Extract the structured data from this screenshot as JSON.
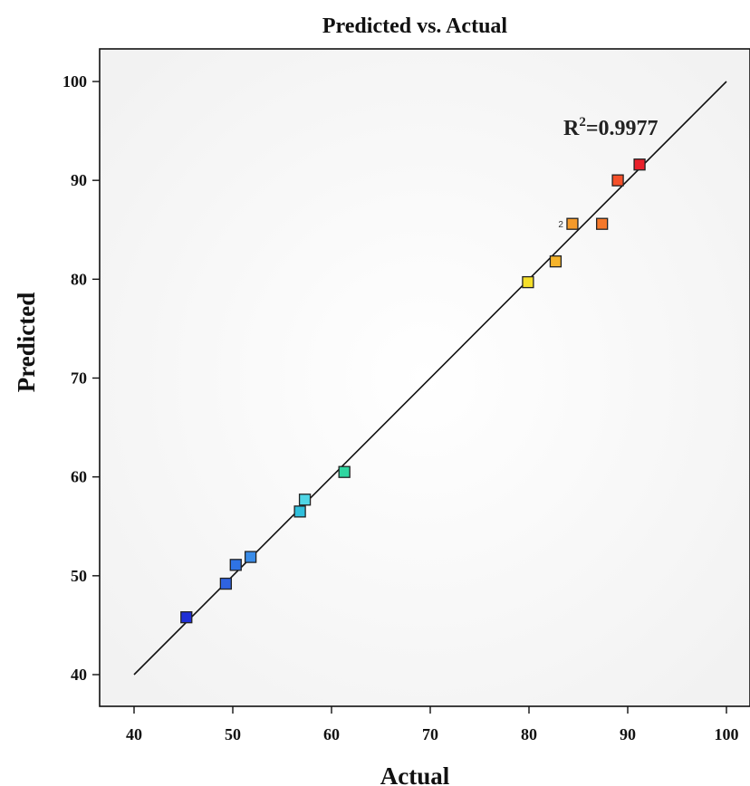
{
  "chart_data": {
    "type": "scatter",
    "title": "Predicted vs. Actual",
    "xlabel": "Actual",
    "ylabel": "Predicted",
    "xlim": [
      40,
      100
    ],
    "ylim": [
      40,
      100
    ],
    "xticks": [
      "40",
      "50",
      "60",
      "70",
      "80",
      "90",
      "100"
    ],
    "yticks": [
      "40",
      "50",
      "60",
      "70",
      "80",
      "90",
      "100"
    ],
    "annotation": {
      "prefix": "R",
      "sup": "2",
      "value": "=0.9977"
    },
    "reference_line": {
      "x": [
        40,
        100
      ],
      "y": [
        40,
        100
      ]
    },
    "grid": false,
    "legend": "none",
    "points": [
      {
        "x": 45.3,
        "y": 45.8,
        "color": "#1f2fd6"
      },
      {
        "x": 49.3,
        "y": 49.2,
        "color": "#2f63e0"
      },
      {
        "x": 50.3,
        "y": 51.1,
        "color": "#2f73e4"
      },
      {
        "x": 51.8,
        "y": 51.9,
        "color": "#3a8ce8"
      },
      {
        "x": 56.8,
        "y": 56.5,
        "color": "#2fbfdc"
      },
      {
        "x": 57.3,
        "y": 57.7,
        "color": "#4fd6e6"
      },
      {
        "x": 61.3,
        "y": 60.5,
        "color": "#2fd6a0"
      },
      {
        "x": 79.9,
        "y": 79.7,
        "color": "#f5df2a"
      },
      {
        "x": 82.7,
        "y": 81.8,
        "color": "#f5b32a"
      },
      {
        "x": 84.4,
        "y": 85.6,
        "color": "#f59a2a",
        "note": "2"
      },
      {
        "x": 87.4,
        "y": 85.6,
        "color": "#f5782a"
      },
      {
        "x": 89.0,
        "y": 90.0,
        "color": "#f5502a"
      },
      {
        "x": 91.2,
        "y": 91.6,
        "color": "#e8202a"
      }
    ]
  }
}
